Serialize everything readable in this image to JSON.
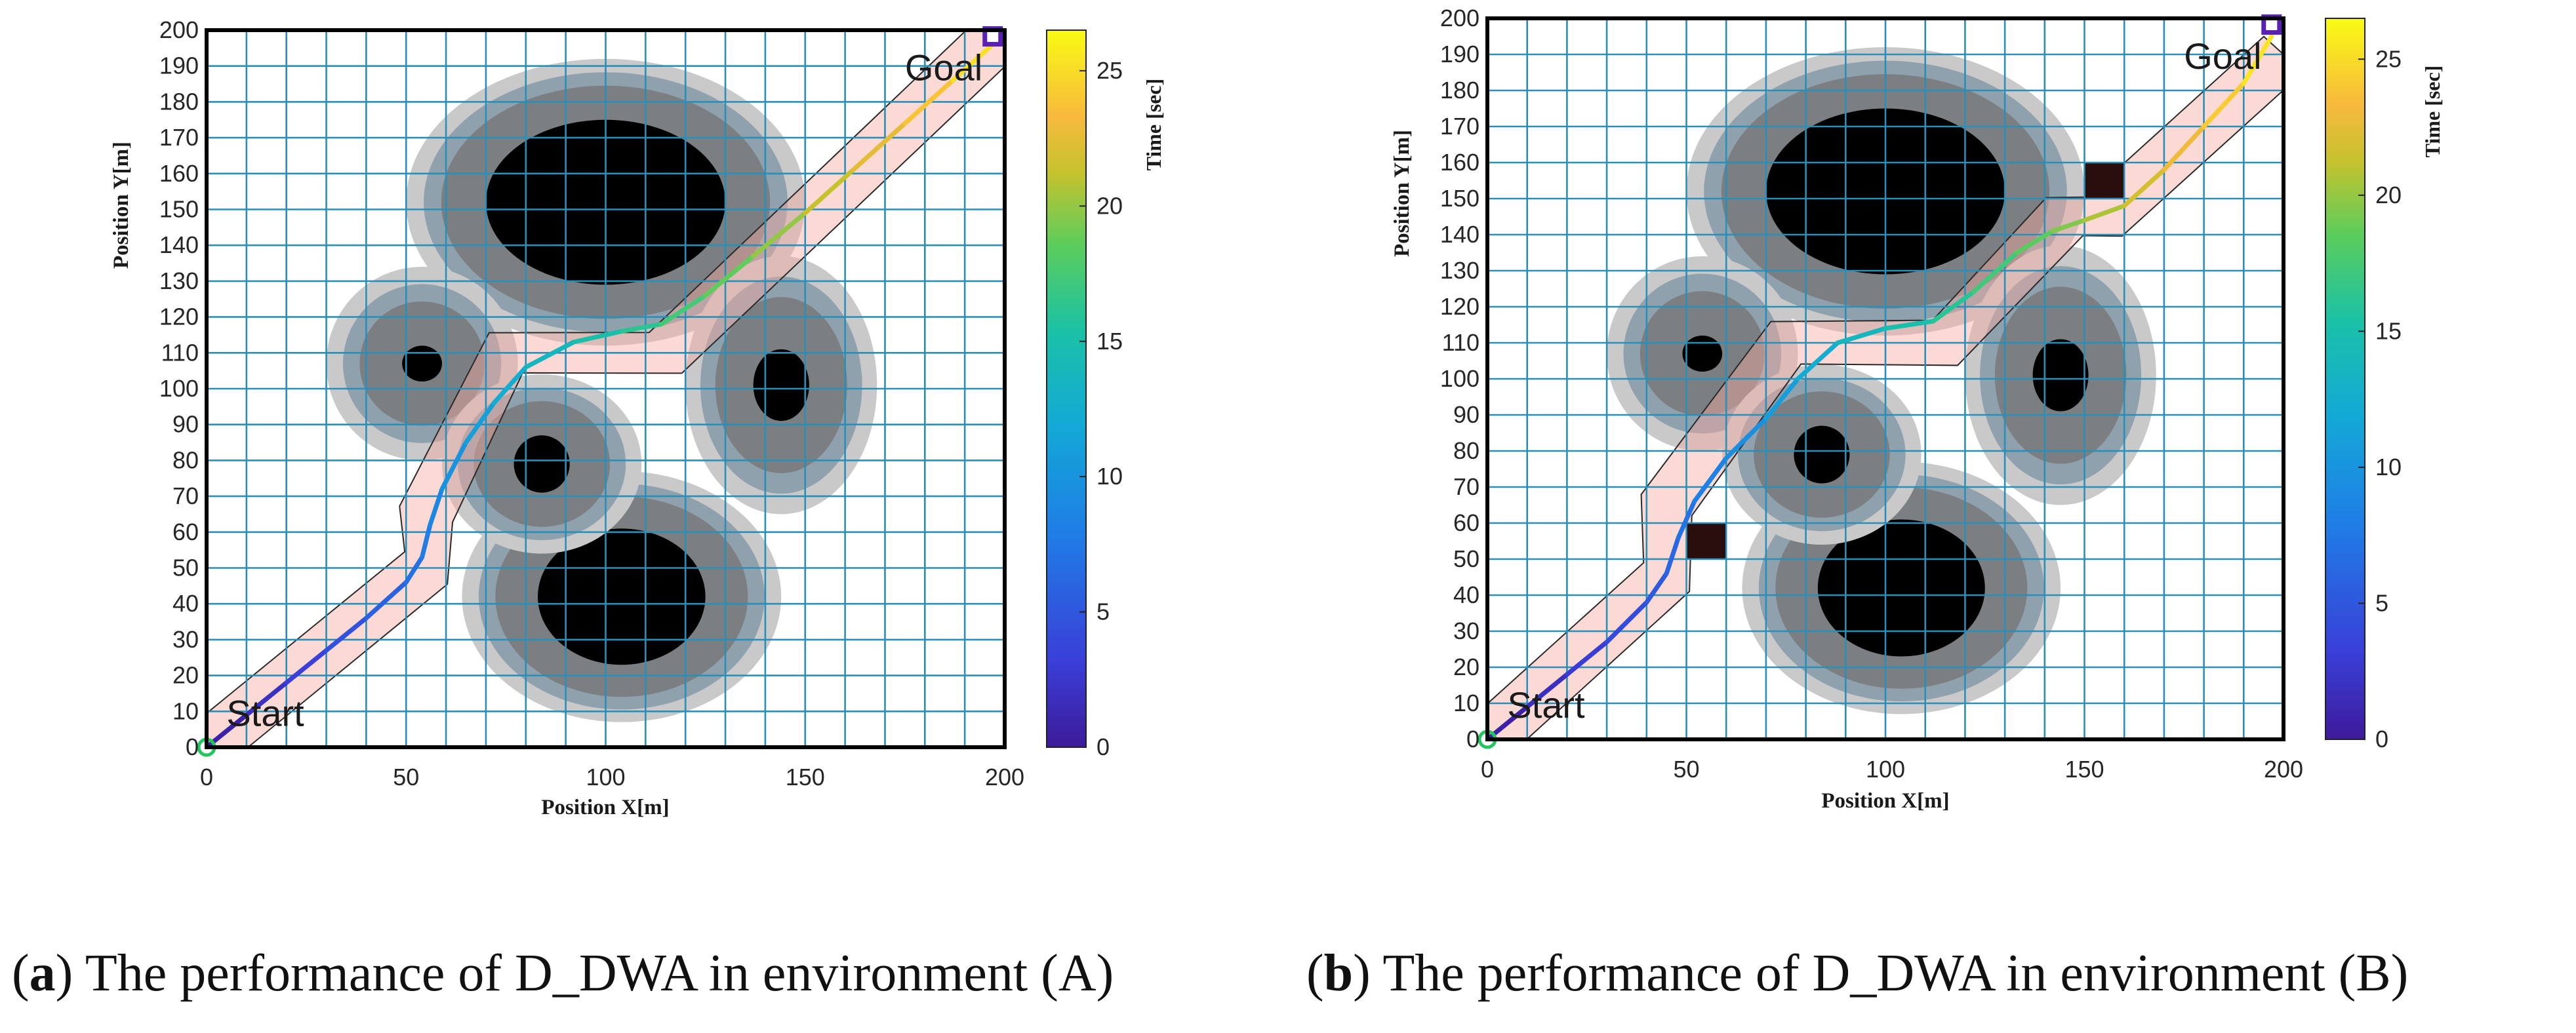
{
  "chart_data": [
    {
      "id": "a",
      "type": "heatmap",
      "subtype": "occupancy-grid path plot",
      "xlabel": "Position X[m]",
      "ylabel": "Position Y[m]",
      "xlim": [
        0,
        200
      ],
      "ylim": [
        0,
        200
      ],
      "x_ticks": [
        0,
        50,
        100,
        150,
        200
      ],
      "y_ticks": [
        0,
        10,
        20,
        30,
        40,
        50,
        60,
        70,
        80,
        90,
        100,
        110,
        120,
        130,
        140,
        150,
        160,
        170,
        180,
        190,
        200
      ],
      "grid_step": 10,
      "grid": true,
      "colorbar": {
        "label": "Time [sec]",
        "range": [
          0,
          26.5
        ],
        "ticks": [
          0,
          5,
          10,
          15,
          20,
          25
        ]
      },
      "annotations": [
        {
          "text": "Start",
          "x": 5,
          "y": 10
        },
        {
          "text": "Goal",
          "x": 175,
          "y": 190
        }
      ],
      "obstacles": [
        {
          "cx": 100,
          "cy": 152,
          "rx": 30,
          "ry": 23,
          "halo_rx": 50,
          "halo_ry": 40
        },
        {
          "cx": 104,
          "cy": 42,
          "rx": 21,
          "ry": 19,
          "halo_rx": 40,
          "halo_ry": 35
        },
        {
          "cx": 54,
          "cy": 107,
          "rx": 5,
          "ry": 5,
          "halo_rx": 24,
          "halo_ry": 27
        },
        {
          "cx": 84,
          "cy": 79,
          "rx": 7,
          "ry": 8,
          "halo_rx": 25,
          "halo_ry": 25
        },
        {
          "cx": 144,
          "cy": 101,
          "rx": 7,
          "ry": 10,
          "halo_rx": 24,
          "halo_ry": 36
        }
      ],
      "extra_obstacles": [],
      "corridor_centerline": [
        [
          0,
          0
        ],
        [
          55,
          50
        ],
        [
          55,
          65
        ],
        [
          75,
          110
        ],
        [
          115,
          110
        ],
        [
          200,
          200
        ]
      ],
      "corridor_halfwidth": 5,
      "path": [
        [
          0,
          0
        ],
        [
          10,
          9
        ],
        [
          20,
          18
        ],
        [
          30,
          27
        ],
        [
          40,
          36
        ],
        [
          50,
          46
        ],
        [
          54,
          53
        ],
        [
          56,
          62
        ],
        [
          59,
          72
        ],
        [
          65,
          85
        ],
        [
          72,
          96
        ],
        [
          80,
          106
        ],
        [
          92,
          113
        ],
        [
          104,
          116
        ],
        [
          114,
          118
        ],
        [
          125,
          126
        ],
        [
          137,
          137
        ],
        [
          150,
          149
        ],
        [
          162,
          161
        ],
        [
          175,
          174
        ],
        [
          187,
          186
        ],
        [
          198,
          197
        ]
      ],
      "path_times": [
        0,
        1.3,
        2.6,
        3.9,
        5.2,
        6.5,
        7.4,
        8.3,
        9.3,
        10.5,
        11.7,
        13,
        14.4,
        15.6,
        16.8,
        18,
        19.3,
        20.6,
        21.9,
        23.2,
        24.5,
        25.8
      ],
      "start": [
        0,
        0
      ],
      "goal": [
        197,
        199
      ]
    },
    {
      "id": "b",
      "type": "heatmap",
      "subtype": "occupancy-grid path plot",
      "xlabel": "Position X[m]",
      "ylabel": "Position Y[m]",
      "xlim": [
        0,
        200
      ],
      "ylim": [
        0,
        200
      ],
      "x_ticks": [
        0,
        50,
        100,
        150,
        200
      ],
      "y_ticks": [
        0,
        10,
        20,
        30,
        40,
        50,
        60,
        70,
        80,
        90,
        100,
        110,
        120,
        130,
        140,
        150,
        160,
        170,
        180,
        190,
        200
      ],
      "grid_step": 10,
      "grid": true,
      "colorbar": {
        "label": "Time [sec]",
        "range": [
          0,
          26.5
        ],
        "ticks": [
          0,
          5,
          10,
          15,
          20,
          25
        ]
      },
      "annotations": [
        {
          "text": "Start",
          "x": 5,
          "y": 10
        },
        {
          "text": "Goal",
          "x": 175,
          "y": 190
        }
      ],
      "obstacles": [
        {
          "cx": 100,
          "cy": 152,
          "rx": 30,
          "ry": 23,
          "halo_rx": 50,
          "halo_ry": 40
        },
        {
          "cx": 104,
          "cy": 42,
          "rx": 21,
          "ry": 19,
          "halo_rx": 40,
          "halo_ry": 35
        },
        {
          "cx": 54,
          "cy": 107,
          "rx": 5,
          "ry": 5,
          "halo_rx": 24,
          "halo_ry": 27
        },
        {
          "cx": 84,
          "cy": 79,
          "rx": 7,
          "ry": 8,
          "halo_rx": 25,
          "halo_ry": 25
        },
        {
          "cx": 144,
          "cy": 101,
          "rx": 7,
          "ry": 10,
          "halo_rx": 24,
          "halo_ry": 36
        }
      ],
      "extra_obstacles": [
        {
          "x": 50,
          "y": 50,
          "w": 10,
          "h": 10
        },
        {
          "x": 150,
          "y": 150,
          "w": 10,
          "h": 10
        }
      ],
      "corridor_centerline": [
        [
          0,
          0
        ],
        [
          45,
          45
        ],
        [
          45,
          65
        ],
        [
          75,
          110
        ],
        [
          115,
          110
        ],
        [
          145,
          145
        ],
        [
          155,
          145
        ],
        [
          200,
          190
        ]
      ],
      "corridor_halfwidth": 5,
      "path": [
        [
          0,
          0
        ],
        [
          10,
          9
        ],
        [
          20,
          18
        ],
        [
          30,
          27
        ],
        [
          40,
          38
        ],
        [
          45,
          46
        ],
        [
          48,
          56
        ],
        [
          52,
          66
        ],
        [
          60,
          78
        ],
        [
          70,
          89
        ],
        [
          78,
          100
        ],
        [
          88,
          110
        ],
        [
          100,
          114
        ],
        [
          112,
          116
        ],
        [
          122,
          124
        ],
        [
          133,
          135
        ],
        [
          142,
          141
        ],
        [
          150,
          144
        ],
        [
          160,
          148
        ],
        [
          170,
          158
        ],
        [
          180,
          170
        ],
        [
          190,
          182
        ],
        [
          197,
          195
        ]
      ],
      "path_times": [
        0,
        1.2,
        2.4,
        3.6,
        4.8,
        5.6,
        6.6,
        7.6,
        8.8,
        10.2,
        11.6,
        13,
        14.3,
        15.5,
        16.6,
        17.8,
        19,
        20,
        21.2,
        22.4,
        23.6,
        24.8,
        26
      ],
      "start": [
        0,
        0
      ],
      "goal": [
        197,
        199
      ]
    }
  ],
  "captions": [
    {
      "tag": "a",
      "text": "The performance of D_DWA in environment (A)"
    },
    {
      "tag": "b",
      "text": "The performance of D_DWA in environment (B)"
    }
  ]
}
